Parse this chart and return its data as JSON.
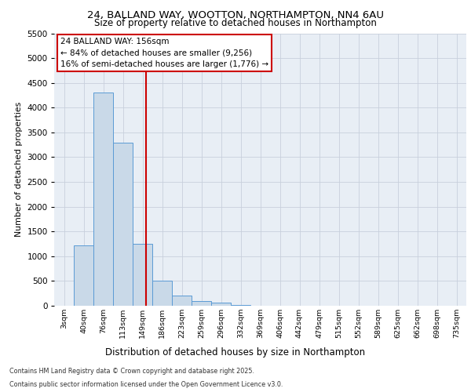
{
  "title_line1": "24, BALLAND WAY, WOOTTON, NORTHAMPTON, NN4 6AU",
  "title_line2": "Size of property relative to detached houses in Northampton",
  "xlabel": "Distribution of detached houses by size in Northampton",
  "ylabel": "Number of detached properties",
  "categories": [
    "3sqm",
    "40sqm",
    "76sqm",
    "113sqm",
    "149sqm",
    "186sqm",
    "223sqm",
    "259sqm",
    "296sqm",
    "332sqm",
    "369sqm",
    "406sqm",
    "442sqm",
    "479sqm",
    "515sqm",
    "552sqm",
    "589sqm",
    "625sqm",
    "662sqm",
    "698sqm",
    "735sqm"
  ],
  "values": [
    0,
    1220,
    4300,
    3300,
    1250,
    500,
    200,
    100,
    60,
    10,
    0,
    0,
    0,
    0,
    0,
    0,
    0,
    0,
    0,
    0,
    0
  ],
  "bar_color": "#c9d9e8",
  "bar_edge_color": "#5b9bd5",
  "vline_color": "#cc0000",
  "annotation_box_text": "24 BALLAND WAY: 156sqm\n← 84% of detached houses are smaller (9,256)\n16% of semi-detached houses are larger (1,776) →",
  "annotation_box_color": "#cc0000",
  "ylim": [
    0,
    5500
  ],
  "yticks": [
    0,
    500,
    1000,
    1500,
    2000,
    2500,
    3000,
    3500,
    4000,
    4500,
    5000,
    5500
  ],
  "grid_color": "#c8d0dc",
  "background_color": "#e8eef5",
  "footer_line1": "Contains HM Land Registry data © Crown copyright and database right 2025.",
  "footer_line2": "Contains public sector information licensed under the Open Government Licence v3.0."
}
